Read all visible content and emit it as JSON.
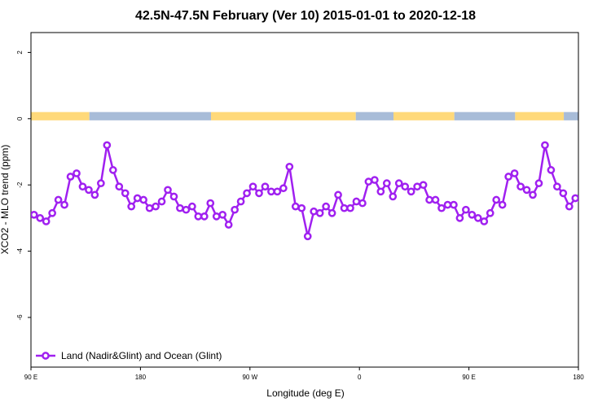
{
  "chart_data": {
    "type": "line",
    "title": "42.5N-47.5N February (Ver 10)   2015-01-01 to 2020-12-18",
    "xlabel": "Longitude (deg E)",
    "ylabel": "XCO2 - MLO trend (ppm)",
    "xlim": [
      90,
      540
    ],
    "ylim": [
      -7.5,
      2.6
    ],
    "x_ticks": [
      {
        "value": 90,
        "label": "90 E"
      },
      {
        "value": 180,
        "label": "180"
      },
      {
        "value": 270,
        "label": "90 W"
      },
      {
        "value": 360,
        "label": "0"
      },
      {
        "value": 450,
        "label": "90 E"
      },
      {
        "value": 540,
        "label": "180"
      }
    ],
    "y_ticks": [
      {
        "value": 2,
        "label": "2"
      },
      {
        "value": 0,
        "label": "0"
      },
      {
        "value": -2,
        "label": "-2"
      },
      {
        "value": -4,
        "label": "-4"
      },
      {
        "value": -6,
        "label": "-6"
      }
    ],
    "grid": false,
    "legend_position": "bottom-left",
    "land_ocean_band": {
      "y_range": [
        -0.05,
        0.2
      ],
      "land_color": "#FFD97A",
      "ocean_color": "#A8BCD8",
      "segments": [
        {
          "from": 90,
          "to": 138,
          "kind": "land"
        },
        {
          "from": 138,
          "to": 238,
          "kind": "ocean"
        },
        {
          "from": 238,
          "to": 357,
          "kind": "land"
        },
        {
          "from": 357,
          "to": 388,
          "kind": "ocean"
        },
        {
          "from": 388,
          "to": 438,
          "kind": "land"
        },
        {
          "from": 438,
          "to": 488,
          "kind": "ocean"
        },
        {
          "from": 488,
          "to": 528,
          "kind": "land"
        },
        {
          "from": 528,
          "to": 540,
          "kind": "ocean"
        }
      ]
    },
    "series": [
      {
        "name": "Land (Nadir&Glint) and Ocean (Glint)",
        "color": "#A020F0",
        "x": [
          92.5,
          97.5,
          102.5,
          107.5,
          112.5,
          117.5,
          122.5,
          127.5,
          132.5,
          137.5,
          142.5,
          147.5,
          152.5,
          157.5,
          162.5,
          167.5,
          172.5,
          177.5,
          182.5,
          187.5,
          192.5,
          197.5,
          202.5,
          207.5,
          212.5,
          217.5,
          222.5,
          227.5,
          232.5,
          237.5,
          242.5,
          247.5,
          252.5,
          257.5,
          262.5,
          267.5,
          272.5,
          277.5,
          282.5,
          287.5,
          292.5,
          297.5,
          302.5,
          307.5,
          312.5,
          317.5,
          322.5,
          327.5,
          332.5,
          337.5,
          342.5,
          347.5,
          352.5,
          357.5,
          362.5,
          367.5,
          372.5,
          377.5,
          382.5,
          387.5,
          392.5,
          397.5,
          402.5,
          407.5,
          412.5,
          417.5,
          422.5,
          427.5,
          432.5,
          437.5,
          442.5,
          447.5,
          452.5,
          457.5,
          462.5,
          467.5,
          472.5,
          477.5,
          482.5,
          487.5,
          492.5,
          497.5,
          502.5,
          507.5,
          512.5,
          517.5,
          522.5,
          527.5,
          532.5,
          537.5,
          542.5
        ],
        "y": [
          -2.9,
          -3.0,
          -3.1,
          -2.85,
          -2.45,
          -2.6,
          -1.75,
          -1.65,
          -2.05,
          -2.15,
          -2.3,
          -1.95,
          -0.8,
          -1.55,
          -2.05,
          -2.25,
          -2.65,
          -2.4,
          -2.45,
          -2.7,
          -2.65,
          -2.5,
          -2.15,
          -2.35,
          -2.7,
          -2.75,
          -2.65,
          -2.95,
          -2.95,
          -2.55,
          -2.95,
          -2.9,
          -3.2,
          -2.75,
          -2.5,
          -2.25,
          -2.05,
          -2.25,
          -2.05,
          -2.2,
          -2.2,
          -2.1,
          -1.45,
          -2.65,
          -2.7,
          -3.55,
          -2.8,
          -2.85,
          -2.65,
          -2.85,
          -2.3,
          -2.7,
          -2.7,
          -2.5,
          -2.55,
          -1.9,
          -1.85,
          -2.2,
          -1.95,
          -2.35,
          -1.95,
          -2.05,
          -2.2,
          -2.05,
          -2.0,
          -2.45,
          -2.45,
          -2.7,
          -2.6,
          -2.6,
          -3.0,
          -2.75,
          -2.9,
          -3.0,
          -3.1,
          -2.85,
          -2.45,
          -2.6,
          -1.75,
          -1.65,
          -2.05,
          -2.15,
          -2.3,
          -1.95,
          -0.8,
          -1.55,
          -2.05,
          -2.25,
          -2.65,
          -2.4,
          -2.45
        ]
      }
    ]
  }
}
